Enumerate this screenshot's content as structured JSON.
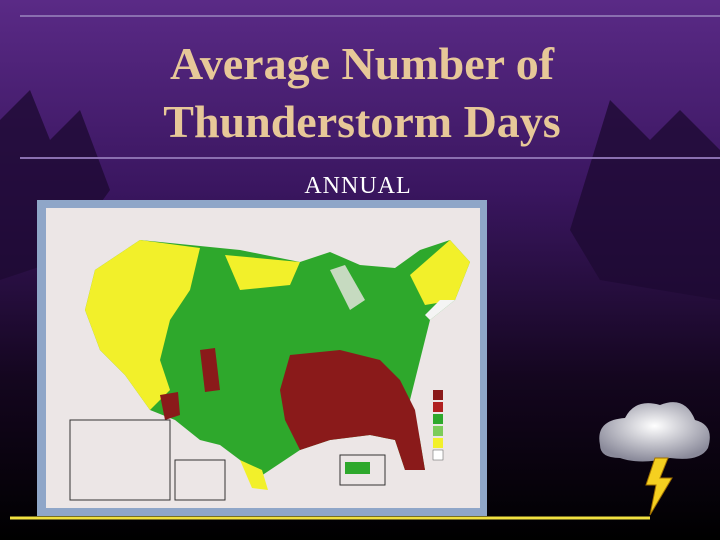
{
  "slide": {
    "title_line1": "Average Number of",
    "title_line2": "Thunderstorm Days",
    "subtitle": "ANNUAL"
  }
}
